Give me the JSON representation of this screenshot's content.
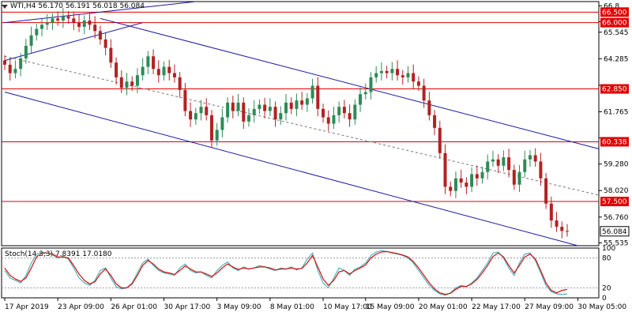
{
  "header": {
    "symbol_info": "WTI,H4",
    "ohlc": "56.170 56.191 56.018 56.084"
  },
  "oscillator": {
    "title": "Stoch(14,3,3)",
    "values": "7.8391 17.0180",
    "levels": [
      100,
      80,
      20,
      0
    ]
  },
  "colors": {
    "bull": "#2e8b57",
    "bear": "#b22222",
    "level_line": "#e00000",
    "channel": "#1a1aa0",
    "stoch_main": "#4fb3bf",
    "stoch_signal": "#d01010",
    "grid": "#999999"
  },
  "chart_data": [
    {
      "type": "candlestick",
      "title": "",
      "y_axis_ticks": [
        66.8,
        66.045,
        65.545,
        64.285,
        63.025,
        61.765,
        60.52,
        59.28,
        58.02,
        56.76,
        55.535
      ],
      "y_axis_tick_labels": [
        "66.8",
        "",
        "65.545",
        "64.285",
        "",
        "61.765",
        "",
        "59.280",
        "58.020",
        "56.760",
        "55.535"
      ],
      "ylim": [
        55.4,
        67.0
      ],
      "x_axis_tick_labels": [
        "17 Apr 2019",
        "23 Apr 09:00",
        "26 Apr 01:00",
        "30 Apr 17:00",
        "3 May 09:00",
        "8 May 01:00",
        "10 May 17:00",
        "15 May 09:00",
        "20 May 01:00",
        "22 May 17:00",
        "27 May 09:00",
        "30 May 05:00"
      ],
      "x_tick_index": [
        0,
        10,
        20,
        30,
        40,
        50,
        60,
        68,
        78,
        88,
        98,
        108
      ],
      "horizontal_levels": [
        {
          "label": "66.500",
          "value": 66.5
        },
        {
          "label": "66.000",
          "value": 66.0
        },
        {
          "label": "62.850",
          "value": 62.85
        },
        {
          "label": "60.338",
          "value": 60.338
        },
        {
          "label": "57.500",
          "value": 57.5
        }
      ],
      "current_price": {
        "label": "56.084",
        "value": 56.084
      },
      "trend_lines": [
        {
          "name": "upper-channel-top",
          "from": {
            "i": 0,
            "p": 66.0
          },
          "to": {
            "i": 36,
            "p": 67.0
          }
        },
        {
          "name": "upper-channel-bottom",
          "from": {
            "i": 0,
            "p": 64.2
          },
          "to": {
            "i": 26,
            "p": 66.0
          }
        },
        {
          "name": "down-channel-top",
          "from": {
            "i": 18,
            "p": 66.2
          },
          "to": {
            "i": 112,
            "p": 60.0
          }
        },
        {
          "name": "down-channel-bottom",
          "from": {
            "i": 0,
            "p": 62.7
          },
          "to": {
            "i": 108,
            "p": 55.4
          }
        },
        {
          "name": "mid-dashed",
          "from": {
            "i": 0,
            "p": 64.4
          },
          "to": {
            "i": 112,
            "p": 57.8
          }
        }
      ],
      "candles_close": [
        64.0,
        63.6,
        63.8,
        64.3,
        64.9,
        65.4,
        65.7,
        65.9,
        66.0,
        66.2,
        66.1,
        66.3,
        66.2,
        66.0,
        65.8,
        66.1,
        65.9,
        65.6,
        65.2,
        64.8,
        64.1,
        63.4,
        62.9,
        63.2,
        63.0,
        63.5,
        63.9,
        64.4,
        63.8,
        63.5,
        63.9,
        63.6,
        63.4,
        62.8,
        61.8,
        61.4,
        61.7,
        62.0,
        61.6,
        60.4,
        60.9,
        61.5,
        62.2,
        61.8,
        62.2,
        61.3,
        61.6,
        61.9,
        62.1,
        61.8,
        62.0,
        61.4,
        61.7,
        62.2,
        61.9,
        62.3,
        62.1,
        62.4,
        63.0,
        61.9,
        61.5,
        61.2,
        61.6,
        62.0,
        61.7,
        61.4,
        62.1,
        62.6,
        62.7,
        63.4,
        63.6,
        63.7,
        63.6,
        63.8,
        63.5,
        63.4,
        63.6,
        63.2,
        63.0,
        62.3,
        61.6,
        61.0,
        59.8,
        58.2,
        58.0,
        58.6,
        58.4,
        58.2,
        58.8,
        58.6,
        58.9,
        59.4,
        59.5,
        59.2,
        59.6,
        59.0,
        58.3,
        58.9,
        59.5,
        59.7,
        59.4,
        58.6,
        57.4,
        56.6,
        56.3,
        56.1,
        56.08
      ],
      "stochastic_main": [
        55,
        40,
        35,
        30,
        45,
        70,
        88,
        92,
        90,
        86,
        80,
        84,
        78,
        60,
        40,
        30,
        25,
        35,
        55,
        60,
        40,
        22,
        18,
        20,
        30,
        50,
        70,
        78,
        65,
        55,
        50,
        48,
        45,
        60,
        68,
        55,
        50,
        52,
        45,
        40,
        55,
        65,
        72,
        60,
        55,
        62,
        58,
        60,
        65,
        62,
        58,
        55,
        60,
        58,
        62,
        56,
        60,
        78,
        90,
        55,
        30,
        20,
        40,
        60,
        55,
        45,
        58,
        62,
        70,
        85,
        92,
        95,
        93,
        90,
        88,
        85,
        80,
        70,
        55,
        40,
        25,
        15,
        8,
        5,
        10,
        20,
        25,
        22,
        30,
        40,
        55,
        70,
        90,
        92,
        80,
        60,
        45,
        70,
        88,
        90,
        75,
        50,
        25,
        12,
        8,
        7,
        7.84
      ],
      "stochastic_signal": [
        60,
        45,
        38,
        33,
        40,
        60,
        82,
        90,
        90,
        88,
        82,
        82,
        80,
        65,
        48,
        35,
        28,
        32,
        48,
        58,
        45,
        28,
        20,
        20,
        28,
        45,
        65,
        75,
        68,
        58,
        52,
        50,
        47,
        55,
        64,
        58,
        52,
        52,
        48,
        43,
        50,
        60,
        68,
        62,
        57,
        60,
        58,
        60,
        62,
        62,
        60,
        56,
        58,
        58,
        60,
        58,
        59,
        70,
        85,
        62,
        38,
        25,
        35,
        52,
        55,
        48,
        55,
        60,
        66,
        80,
        88,
        92,
        93,
        91,
        89,
        86,
        82,
        73,
        60,
        45,
        30,
        18,
        10,
        7,
        9,
        17,
        23,
        23,
        28,
        37,
        50,
        65,
        83,
        90,
        82,
        65,
        50,
        65,
        82,
        88,
        78,
        55,
        30,
        15,
        10,
        15,
        17.02
      ]
    }
  ]
}
